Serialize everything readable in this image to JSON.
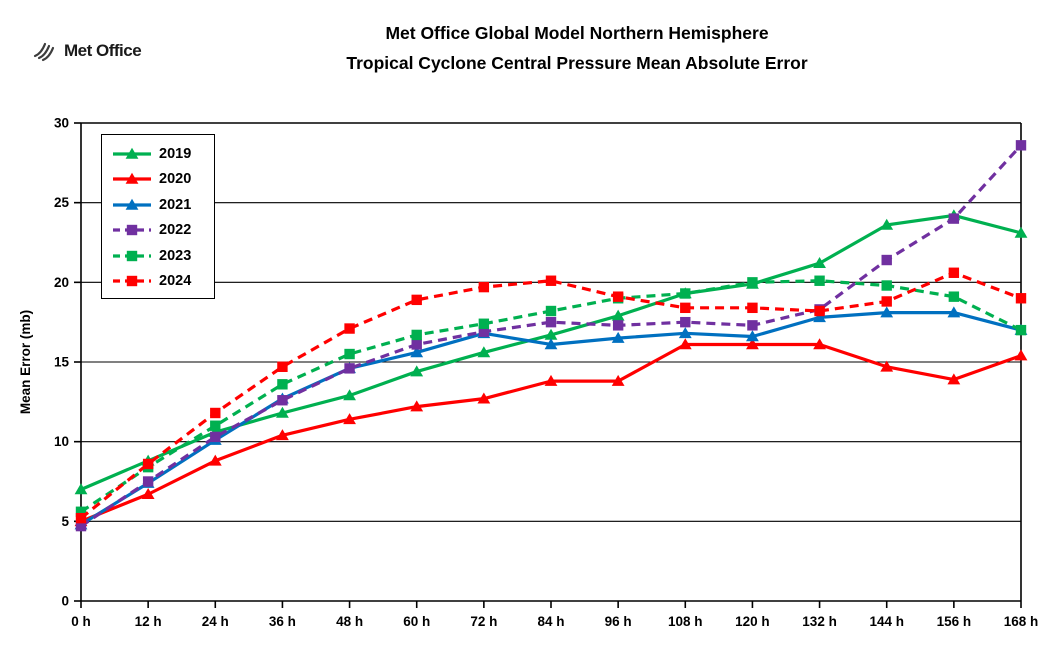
{
  "header": {
    "logo_text": "Met Office",
    "title_line1": "Met Office Global Model Northern Hemisphere",
    "title_line2": "Tropical Cyclone Central Pressure Mean Absolute Error"
  },
  "chart_data": {
    "type": "line",
    "title": "Met Office Global Model Northern Hemisphere Tropical Cyclone Central Pressure Mean Absolute Error",
    "xlabel": "",
    "ylabel": "Mean Error (mb)",
    "x": [
      0,
      12,
      24,
      36,
      48,
      60,
      72,
      84,
      96,
      108,
      120,
      132,
      144,
      156,
      168
    ],
    "x_tick_labels": [
      "0 h",
      "12 h",
      "24 h",
      "36 h",
      "48 h",
      "60 h",
      "72 h",
      "84 h",
      "96 h",
      "108 h",
      "120 h",
      "132 h",
      "144 h",
      "156 h",
      "168 h"
    ],
    "y_ticks": [
      0,
      5,
      10,
      15,
      20,
      25,
      30
    ],
    "ylim": [
      0,
      30
    ],
    "xlim": [
      0,
      168
    ],
    "grid": "horizontal",
    "legend_position": "top-left-inside",
    "series": [
      {
        "name": "2019",
        "color": "#00B050",
        "style": "solid",
        "marker": "triangle",
        "values": [
          7.0,
          8.8,
          10.6,
          11.8,
          12.9,
          14.4,
          15.6,
          16.7,
          17.9,
          19.3,
          19.9,
          21.2,
          23.6,
          24.2,
          23.1
        ]
      },
      {
        "name": "2020",
        "color": "#FF0000",
        "style": "solid",
        "marker": "triangle",
        "values": [
          5.0,
          6.7,
          8.8,
          10.4,
          11.4,
          12.2,
          12.7,
          13.8,
          13.8,
          16.1,
          16.1,
          16.1,
          14.7,
          13.9,
          15.4
        ]
      },
      {
        "name": "2021",
        "color": "#0070C0",
        "style": "solid",
        "marker": "triangle",
        "values": [
          4.8,
          7.4,
          10.1,
          12.7,
          14.6,
          15.6,
          16.8,
          16.1,
          16.5,
          16.8,
          16.6,
          17.8,
          18.1,
          18.1,
          17.0
        ]
      },
      {
        "name": "2022",
        "color": "#7030A0",
        "style": "dashed",
        "marker": "square",
        "values": [
          4.7,
          7.5,
          10.3,
          12.6,
          14.6,
          16.1,
          16.9,
          17.5,
          17.3,
          17.5,
          17.3,
          18.3,
          21.4,
          24.0,
          28.6
        ]
      },
      {
        "name": "2023",
        "color": "#00B050",
        "style": "dashed",
        "marker": "square",
        "values": [
          5.6,
          8.4,
          11.0,
          13.6,
          15.5,
          16.7,
          17.4,
          18.2,
          19.0,
          19.3,
          20.0,
          20.1,
          19.8,
          19.1,
          17.0
        ]
      },
      {
        "name": "2024",
        "color": "#FF0000",
        "style": "dashed",
        "marker": "square",
        "values": [
          5.2,
          8.6,
          11.8,
          14.7,
          17.1,
          18.9,
          19.7,
          20.1,
          19.1,
          18.4,
          18.4,
          18.2,
          18.8,
          20.6,
          19.0
        ]
      }
    ]
  }
}
